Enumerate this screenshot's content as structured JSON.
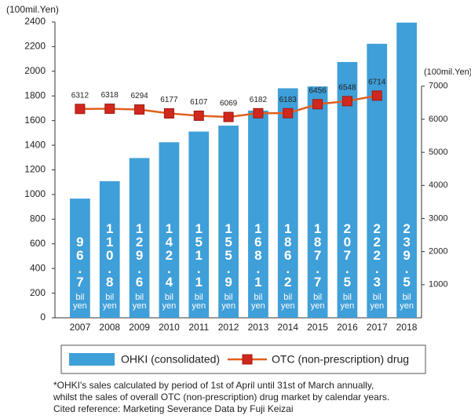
{
  "chart_data": {
    "type": "bar",
    "y_label": "(100mil.Yen)",
    "y2_label": "(100mil.Yen)",
    "categories": [
      "2007",
      "2008",
      "2009",
      "2010",
      "2011",
      "2012",
      "2013",
      "2014",
      "2015",
      "2016",
      "2017",
      "2018"
    ],
    "series": [
      {
        "name": "OHKI (consolidated)",
        "type": "bar",
        "color": "#3f9fd8",
        "values": [
          967,
          1108,
          1296,
          1424,
          1511,
          1559,
          1681,
          1862,
          1877,
          2075,
          2223,
          2395
        ],
        "value_labels": [
          "96.7 bil yen",
          "110.8 bil yen",
          "129.6 bil yen",
          "142.4 bil yen",
          "151.1 bil yen",
          "155.9 bil yen",
          "168.1 bil yen",
          "186.2 bil yen",
          "187.7 bil yen",
          "207.5 bil yen",
          "222.3 bil yen",
          "239.5 bil yen"
        ]
      },
      {
        "name": "OTC (non-prescription) drug",
        "type": "line",
        "axis": "y2",
        "color": "#e0601e",
        "marker_color": "#d0281e",
        "values": [
          6312,
          6318,
          6294,
          6177,
          6107,
          6069,
          6182,
          6183,
          6456,
          6548,
          6714,
          null
        ]
      }
    ],
    "ylim": [
      0,
      2400
    ],
    "yticks": [
      0,
      200,
      400,
      600,
      800,
      1000,
      1200,
      1400,
      1600,
      1800,
      2000,
      2200,
      2400
    ],
    "y2lim": [
      0,
      8940
    ],
    "y2ticks": [
      1000,
      2000,
      3000,
      4000,
      5000,
      6000,
      7000
    ],
    "footnote": [
      "*OHKI's sales calculated by period of 1st of April until 31st of March annually,",
      "whilst the sales of overall OTC (non-prescription) drug market by calendar years.",
      "Cited reference: Marketing Severance Data by Fuji Keizai"
    ]
  }
}
